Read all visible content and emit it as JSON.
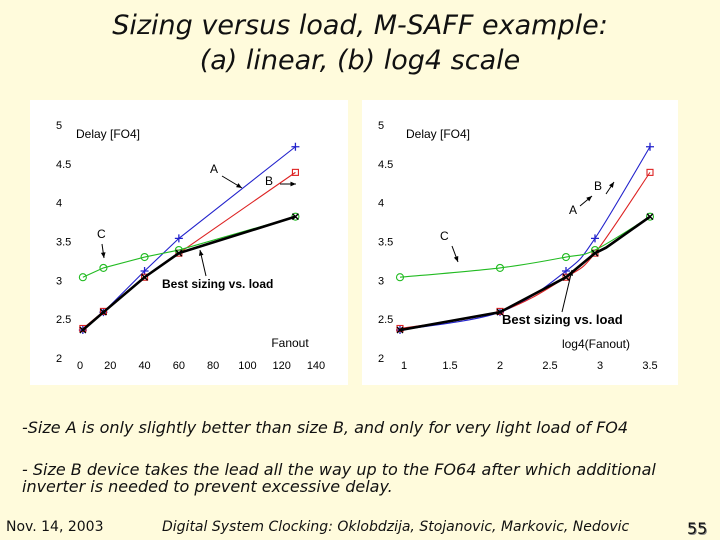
{
  "slide": {
    "title_line1": "Sizing versus load, M-SAFF example:",
    "title_line2": "(a) linear, (b) log4 scale",
    "bullets": [
      "-Size A is only slightly better than size B, and only for very light load of FO4",
      "- Size B device takes the lead all the way up to the FO64 after which additional",
      "inverter is needed to prevent excessive delay."
    ],
    "footer": {
      "date": "Nov. 14, 2003",
      "credit": "Digital System Clocking: Oklobdzija, Stojanovic, Markovic, Nedovic",
      "page": "55"
    }
  },
  "colors": {
    "A": "#2222cc",
    "B": "#dd2222",
    "C": "#22bb22",
    "best": "#000000",
    "background": "#fffbdc"
  },
  "chart_data": [
    {
      "type": "line",
      "panel": "a",
      "xscale": "linear",
      "xlim": [
        0,
        140
      ],
      "ylim": [
        2,
        5
      ],
      "xticks": [
        "0",
        "20",
        "40",
        "60",
        "80",
        "100",
        "120",
        "140"
      ],
      "yticks": [
        "2",
        "2.5",
        "3",
        "3.5",
        "4",
        "4.5",
        "5"
      ],
      "ylabel": "Delay [FO4]",
      "xlabel": "Fanout",
      "series": [
        {
          "name": "A",
          "x": [
            4,
            16,
            40,
            60,
            128
          ],
          "y": [
            2.36,
            2.59,
            3.12,
            3.54,
            4.72
          ]
        },
        {
          "name": "B",
          "x": [
            4,
            16,
            40,
            60,
            128
          ],
          "y": [
            2.38,
            2.6,
            3.04,
            3.35,
            4.39
          ]
        },
        {
          "name": "C",
          "x": [
            4,
            16,
            40,
            60,
            128
          ],
          "y": [
            3.04,
            3.16,
            3.3,
            3.39,
            3.82
          ]
        },
        {
          "name": "Best sizing vs. load",
          "x": [
            4,
            16,
            40,
            60,
            70,
            128
          ],
          "y": [
            2.36,
            2.59,
            3.04,
            3.35,
            3.42,
            3.82
          ]
        }
      ],
      "annotations": [
        "A",
        "B",
        "C",
        "Best sizing vs. load"
      ]
    },
    {
      "type": "line",
      "panel": "b",
      "xscale": "log4",
      "xlim": [
        1,
        3.5
      ],
      "ylim": [
        2,
        5
      ],
      "xticks": [
        "1",
        "1.5",
        "2",
        "2.5",
        "3",
        "3.5"
      ],
      "yticks": [
        "2",
        "2.5",
        "3",
        "3.5",
        "4",
        "4.5",
        "5"
      ],
      "ylabel": "Delay [FO4]",
      "xlabel": "log4(Fanout)",
      "series": [
        {
          "name": "A",
          "x": [
            1,
            2,
            2.66,
            2.95,
            3.5
          ],
          "y": [
            2.36,
            2.59,
            3.12,
            3.54,
            4.72
          ]
        },
        {
          "name": "B",
          "x": [
            1,
            2,
            2.66,
            2.95,
            3.5
          ],
          "y": [
            2.38,
            2.6,
            3.04,
            3.35,
            4.39
          ]
        },
        {
          "name": "C",
          "x": [
            1,
            2,
            2.66,
            2.95,
            3.5
          ],
          "y": [
            3.04,
            3.16,
            3.3,
            3.39,
            3.82
          ]
        },
        {
          "name": "Best sizing vs. load",
          "x": [
            1,
            2,
            2.66,
            2.95,
            3.06,
            3.5
          ],
          "y": [
            2.36,
            2.59,
            3.04,
            3.35,
            3.42,
            3.82
          ]
        }
      ],
      "annotations": [
        "A",
        "B",
        "C",
        "Best sizing vs. load"
      ]
    }
  ]
}
